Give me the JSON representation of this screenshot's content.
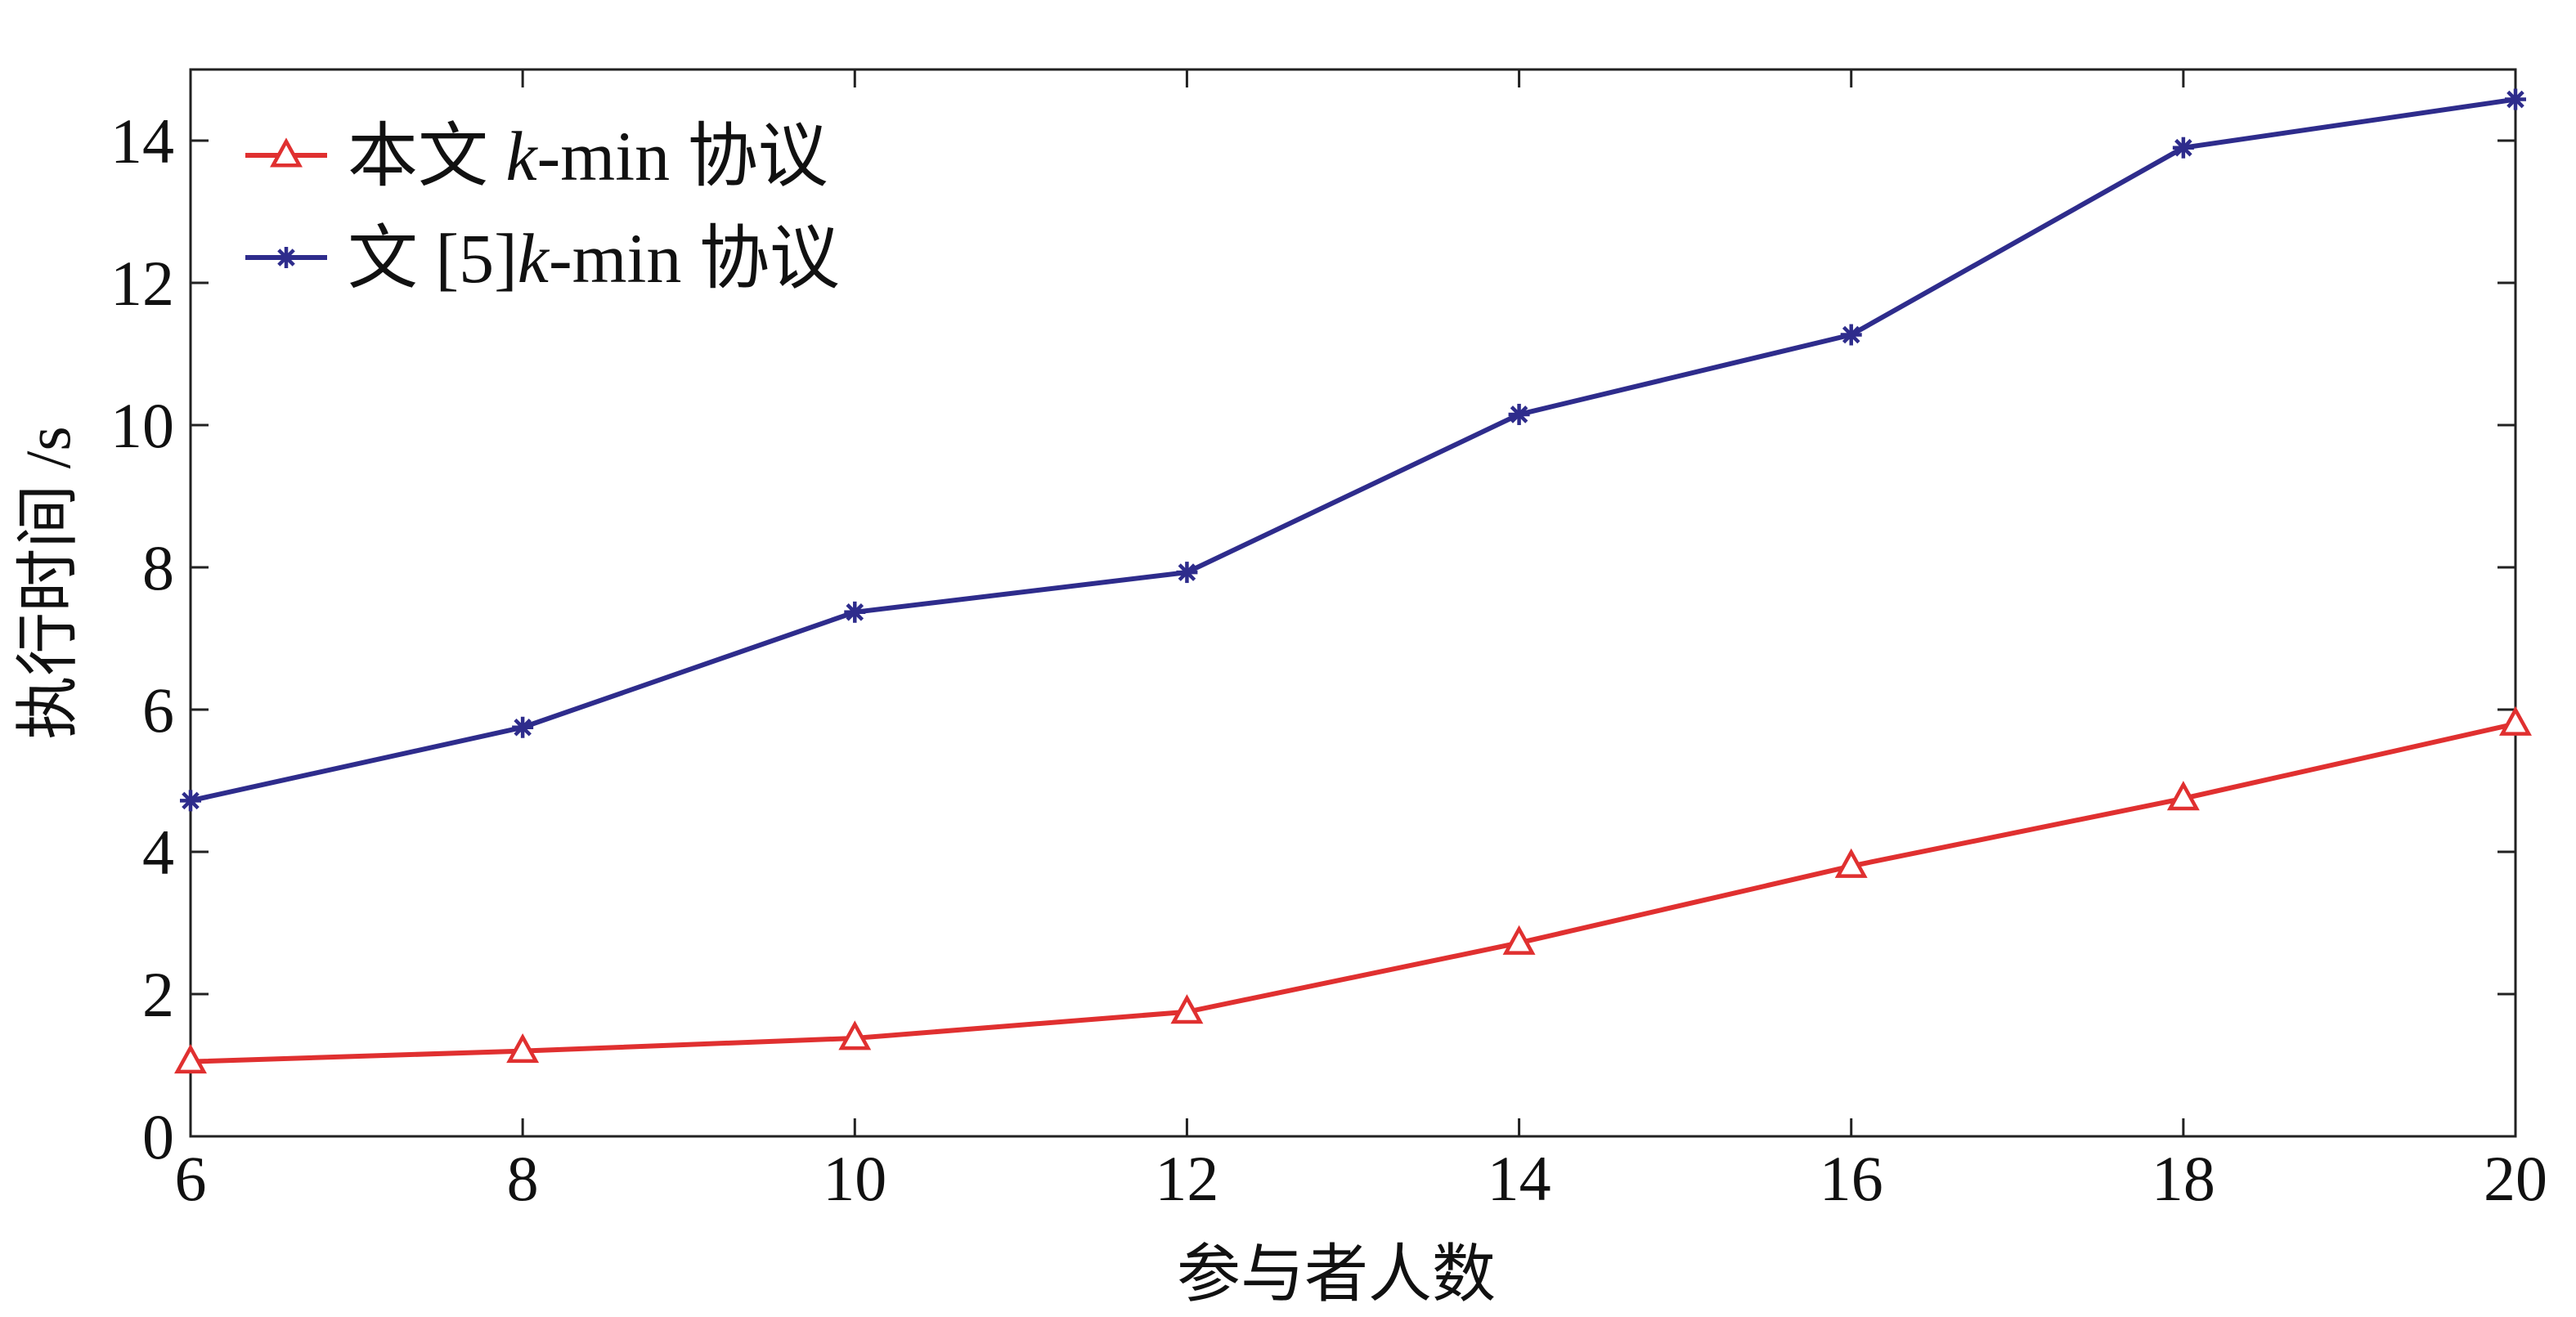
{
  "chart_data": {
    "type": "line",
    "title": "",
    "xlabel": "参与者人数",
    "ylabel": "执行时间 /s",
    "x": [
      6,
      8,
      10,
      12,
      14,
      16,
      18,
      20
    ],
    "xlim": [
      6,
      20
    ],
    "ylim": [
      0,
      15
    ],
    "xticks": [
      6,
      8,
      10,
      12,
      14,
      16,
      18,
      20
    ],
    "yticks": [
      0,
      2,
      4,
      6,
      8,
      10,
      12,
      14
    ],
    "grid": false,
    "legend": {
      "position": "top-left"
    },
    "series": [
      {
        "name": "本文 k-min 协议",
        "label_parts": [
          "本文 ",
          "k",
          "-min 协议"
        ],
        "color": "#e03030",
        "marker": "triangle",
        "values": [
          1.05,
          1.2,
          1.38,
          1.75,
          2.72,
          3.8,
          4.75,
          5.8
        ]
      },
      {
        "name": "文 [5]k-min 协议",
        "label_parts": [
          "文 [5]",
          "k",
          "-min 协议"
        ],
        "color": "#2e2c8c",
        "marker": "asterisk",
        "values": [
          4.72,
          5.75,
          7.37,
          7.93,
          10.15,
          11.27,
          13.9,
          14.58
        ]
      }
    ]
  }
}
